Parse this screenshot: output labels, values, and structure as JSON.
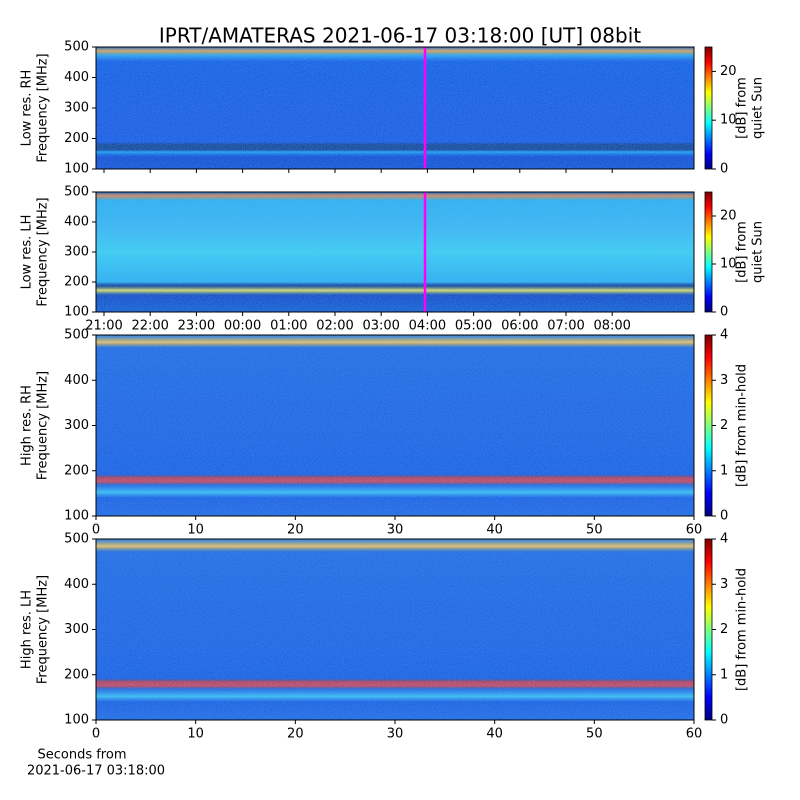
{
  "chart_data": [
    {
      "type": "heatmap",
      "title": "IPRT/AMATERAS 2021-06-17 03:18:00 [UT]   08bit",
      "ylabel": [
        "Low res. RH",
        "Frequency [MHz]"
      ],
      "ylim": [
        100,
        500
      ],
      "yticks": [
        100,
        200,
        300,
        400,
        500
      ],
      "colorbar_label": [
        "[dB] from",
        "quiet Sun"
      ],
      "clim": [
        0,
        25
      ],
      "cticks": [
        0,
        10,
        20
      ],
      "colormap": "jet",
      "marker_color": "#ff00ff"
    },
    {
      "type": "heatmap",
      "ylabel": [
        "Low res. LH",
        "Frequency [MHz]"
      ],
      "ylim": [
        100,
        500
      ],
      "yticks": [
        100,
        200,
        300,
        400,
        500
      ],
      "xticks": [
        "21:00",
        "22:00",
        "23:00",
        "00:00",
        "01:00",
        "02:00",
        "03:00",
        "04:00",
        "05:00",
        "06:00",
        "07:00",
        "08:00"
      ],
      "colorbar_label": [
        "[dB] from",
        "quiet Sun"
      ],
      "clim": [
        0,
        25
      ],
      "cticks": [
        0,
        10,
        20
      ],
      "colormap": "jet",
      "marker_color": "#ff00ff"
    },
    {
      "type": "heatmap",
      "ylabel": [
        "High res. RH",
        "Frequency [MHz]"
      ],
      "ylim": [
        100,
        500
      ],
      "yticks": [
        100,
        200,
        300,
        400,
        500
      ],
      "xlim": [
        0,
        60
      ],
      "xticks": [
        0,
        10,
        20,
        30,
        40,
        50,
        60
      ],
      "colorbar_label": [
        "[dB] from min-hold"
      ],
      "clim": [
        0,
        4
      ],
      "cticks": [
        0,
        1,
        2,
        3,
        4
      ],
      "colormap": "jet"
    },
    {
      "type": "heatmap",
      "ylabel": [
        "High res. LH",
        "Frequency [MHz]"
      ],
      "ylim": [
        100,
        500
      ],
      "yticks": [
        100,
        200,
        300,
        400,
        500
      ],
      "xlim": [
        0,
        60
      ],
      "xticks": [
        0,
        10,
        20,
        30,
        40,
        50,
        60
      ],
      "xlabel": [
        "Seconds from",
        "2021-06-17 03:18:00"
      ],
      "colorbar_label": [
        "[dB] from min-hold"
      ],
      "clim": [
        0,
        4
      ],
      "cticks": [
        0,
        1,
        2,
        3,
        4
      ],
      "colormap": "jet"
    }
  ]
}
